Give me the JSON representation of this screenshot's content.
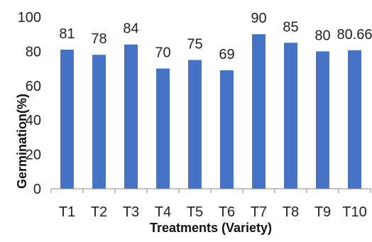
{
  "chart_data": {
    "type": "bar",
    "categories": [
      "T1",
      "T2",
      "T3",
      "T4",
      "T5",
      "T6",
      "T7",
      "T8",
      "T9",
      "T10"
    ],
    "values": [
      81,
      78,
      84,
      70,
      75,
      69,
      90,
      85,
      80,
      80.66
    ],
    "data_labels": [
      "81",
      "78",
      "84",
      "70",
      "75",
      "69",
      "90",
      "85",
      "80",
      "80.66"
    ],
    "xlabel": "Treatments (Variety)",
    "ylabel": "Germination(%)",
    "ylim": [
      0,
      100
    ],
    "yticks": [
      "0",
      "20",
      "40",
      "60",
      "80",
      "100"
    ],
    "grid": false,
    "bar_color": "#4472C4"
  }
}
